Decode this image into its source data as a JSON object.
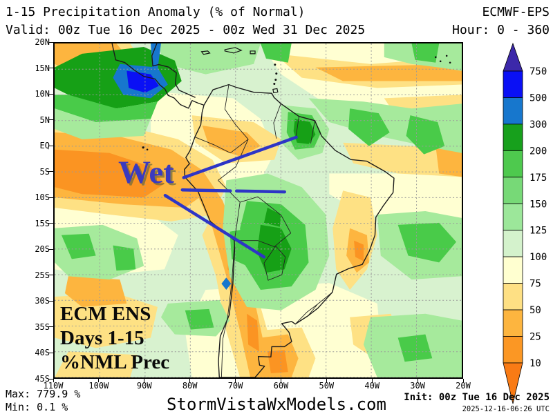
{
  "header": {
    "title": "1-15 Precipitation Anomaly (% of Normal)",
    "model": "ECMWF-EPS",
    "valid": "Valid: 00z Tue 16 Dec 2025 - 00z Wed 31 Dec 2025",
    "hour": "Hour: 0 - 360"
  },
  "map": {
    "annotation": "Wet",
    "corner_lines": [
      "ECM ENS",
      "Days 1-15",
      "%NML Prec"
    ],
    "lat_ticks": [
      "20N",
      "15N",
      "10N",
      "5N",
      "EQ",
      "5S",
      "10S",
      "15S",
      "20S",
      "25S",
      "30S",
      "35S",
      "40S",
      "45S"
    ],
    "lon_ticks": [
      "110W",
      "100W",
      "90W",
      "80W",
      "70W",
      "60W",
      "50W",
      "40W",
      "30W",
      "20W"
    ]
  },
  "colorbar": {
    "unit": "% of normal precipitation",
    "tick_labels": [
      "750",
      "500",
      "300",
      "200",
      "175",
      "150",
      "125",
      "100",
      "75",
      "50",
      "25",
      "10"
    ],
    "segment_colors_top_to_bottom": [
      "#0a10f5",
      "#1777cd",
      "#17a01c",
      "#4ec94e",
      "#77d977",
      "#9ce79a",
      "#d4f2cc",
      "#ffffd0",
      "#fee084",
      "#fdb53f",
      "#fb9724"
    ],
    "above_max_color": "#3c28aa",
    "below_min_color": "#f97b15"
  },
  "footer": {
    "max": "Max: 779.9 %",
    "min": "Min: 0.1 %",
    "site": "StormVistaWxModels.com",
    "init": "Init: 00z Tue 16 Dec 2025",
    "generated": "2025-12-16-06:26 UTC"
  }
}
